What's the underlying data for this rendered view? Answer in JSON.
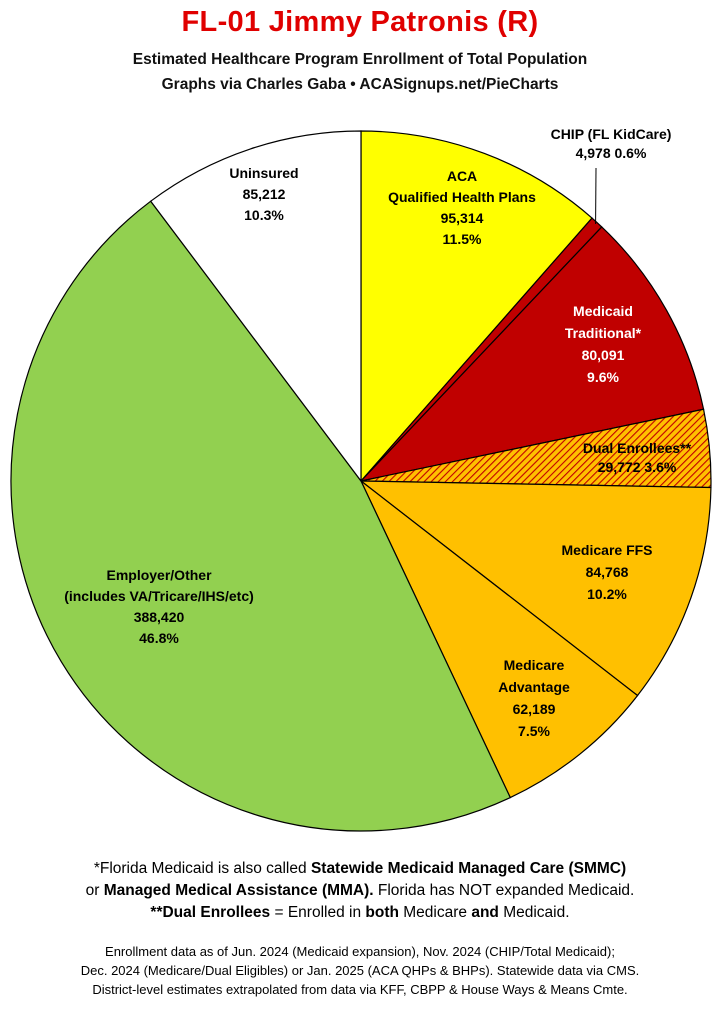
{
  "header": {
    "title": "FL-01 Jimmy Patronis (R)",
    "subtitle": "Estimated Healthcare Program Enrollment of Total Population",
    "credit": "Graphs via Charles Gaba  •  ACASignups.net/PieCharts"
  },
  "chart_data": {
    "type": "pie",
    "title": "FL-01 Jimmy Patronis (R)",
    "start_angle_deg": 0,
    "direction": "clockwise",
    "slices": [
      {
        "label": [
          "ACA",
          "Qualified Health Plans"
        ],
        "value": 95314,
        "value_label": "95,314",
        "percent": "11.5%",
        "color": "#ffff00"
      },
      {
        "label": [
          "CHIP (FL KidCare)"
        ],
        "value": 4978,
        "value_label": "4,978",
        "percent": "0.6%",
        "color": "#c00000"
      },
      {
        "label": [
          "Medicaid",
          "Traditional*"
        ],
        "value": 80091,
        "value_label": "80,091",
        "percent": "9.6%",
        "color": "#c00000"
      },
      {
        "label": [
          "Dual Enrollees**"
        ],
        "value": 29772,
        "value_label": "29,772",
        "percent": "3.6%",
        "color": "#ffc000",
        "pattern": "hatch-red"
      },
      {
        "label": [
          "Medicare FFS"
        ],
        "value": 84768,
        "value_label": "84,768",
        "percent": "10.2%",
        "color": "#ffc000"
      },
      {
        "label": [
          "Medicare",
          "Advantage"
        ],
        "value": 62189,
        "value_label": "62,189",
        "percent": "7.5%",
        "color": "#ffc000"
      },
      {
        "label": [
          "Employer/Other",
          "(includes VA/Tricare/IHS/etc)"
        ],
        "value": 388420,
        "value_label": "388,420",
        "percent": "46.8%",
        "color": "#92d050"
      },
      {
        "label": [
          "Uninsured"
        ],
        "value": 85212,
        "value_label": "85,212",
        "percent": "10.3%",
        "color": "#ffffff"
      }
    ]
  },
  "footnotes": {
    "line1_pre": "*Florida Medicaid is also called ",
    "line1_bold": "Statewide Medicaid Managed Care (SMMC)",
    "line2_pre": "or ",
    "line2_bold": "Managed Medical Assistance (MMA).",
    "line2_post": " Florida has NOT expanded Medicaid.",
    "line3_bold1": "**Dual Enrollees",
    "line3_mid": " = Enrolled in ",
    "line3_bold2": "both",
    "line3_mid2": " Medicare ",
    "line3_bold3": "and",
    "line3_post": " Medicaid."
  },
  "source": {
    "line1": "Enrollment data as of Jun. 2024 (Medicaid expansion), Nov. 2024 (CHIP/Total Medicaid);",
    "line2": "Dec. 2024 (Medicare/Dual Eligibles) or Jan. 2025 (ACA QHPs & BHPs). Statewide data via CMS.",
    "line3": "District-level estimates extrapolated from data via KFF, CBPP & House Ways & Means Cmte."
  }
}
